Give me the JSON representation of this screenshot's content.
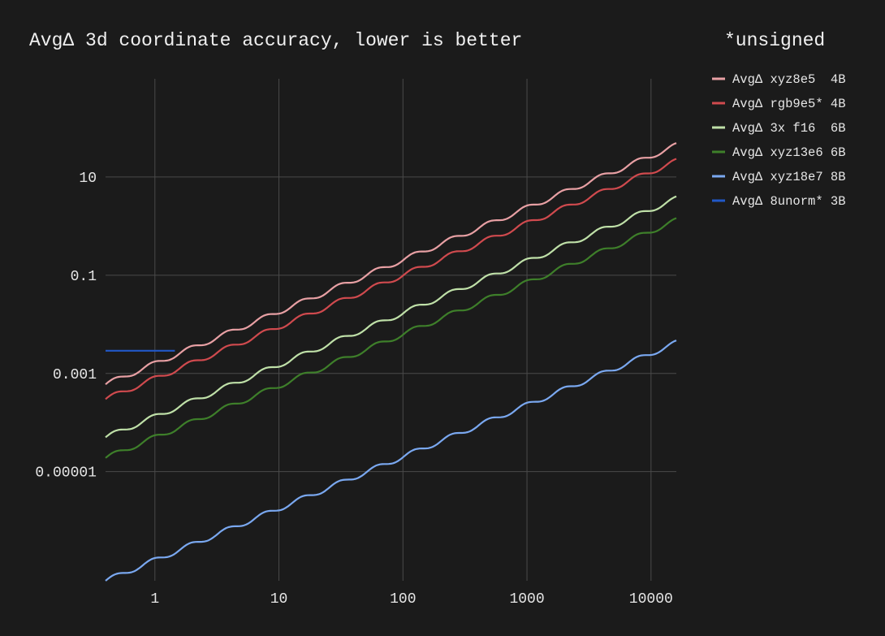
{
  "chart_data": {
    "type": "line",
    "title": "AvgΔ 3d coordinate accuracy, lower is better",
    "subtitle": "*unsigned",
    "xscale": "log",
    "yscale": "log",
    "xlim": [
      0.4,
      16000
    ],
    "ylim": [
      6e-08,
      1000
    ],
    "x_ticks": [
      1,
      10,
      100,
      1000,
      10000
    ],
    "x_tick_labels": [
      "1",
      "10",
      "100",
      "1000",
      "10000"
    ],
    "y_ticks": [
      1e-05,
      0.001,
      0.1,
      10
    ],
    "y_tick_labels": [
      "0.00001",
      "0.001",
      "0.1",
      "10"
    ],
    "grid": true,
    "legend_position": "top-right",
    "series": [
      {
        "name": "AvgΔ xyz8e5  4B",
        "color": "#e8a0a4",
        "x_start": 0.4,
        "x_end": 16000,
        "y_at_start": 0.0006,
        "y_at_end": 44,
        "wiggle": true
      },
      {
        "name": "AvgΔ rgb9e5* 4B",
        "color": "#d04a4e",
        "x_start": 0.4,
        "x_end": 16000,
        "y_at_start": 0.0003,
        "y_at_end": 21,
        "wiggle": true
      },
      {
        "name": "AvgΔ 3x f16  6B",
        "color": "#bfe0a8",
        "x_start": 0.4,
        "x_end": 16000,
        "y_at_start": 5e-05,
        "y_at_end": 3.6,
        "wiggle": true
      },
      {
        "name": "AvgΔ xyz13e6 6B",
        "color": "#3e7f2a",
        "x_start": 0.4,
        "x_end": 16000,
        "y_at_start": 1.9e-05,
        "y_at_end": 1.3,
        "wiggle": true
      },
      {
        "name": "AvgΔ xyz18e7 8B",
        "color": "#7aa8f0",
        "x_start": 0.4,
        "x_end": 16000,
        "y_at_start": 6e-08,
        "y_at_end": 0.0042,
        "wiggle": true
      },
      {
        "name": "AvgΔ 8unorm* 3B",
        "color": "#2158c8",
        "x_start": 0.4,
        "x_end": 1.45,
        "y_at_start": 0.0029,
        "y_at_end": 0.0029,
        "wiggle": false
      }
    ]
  }
}
